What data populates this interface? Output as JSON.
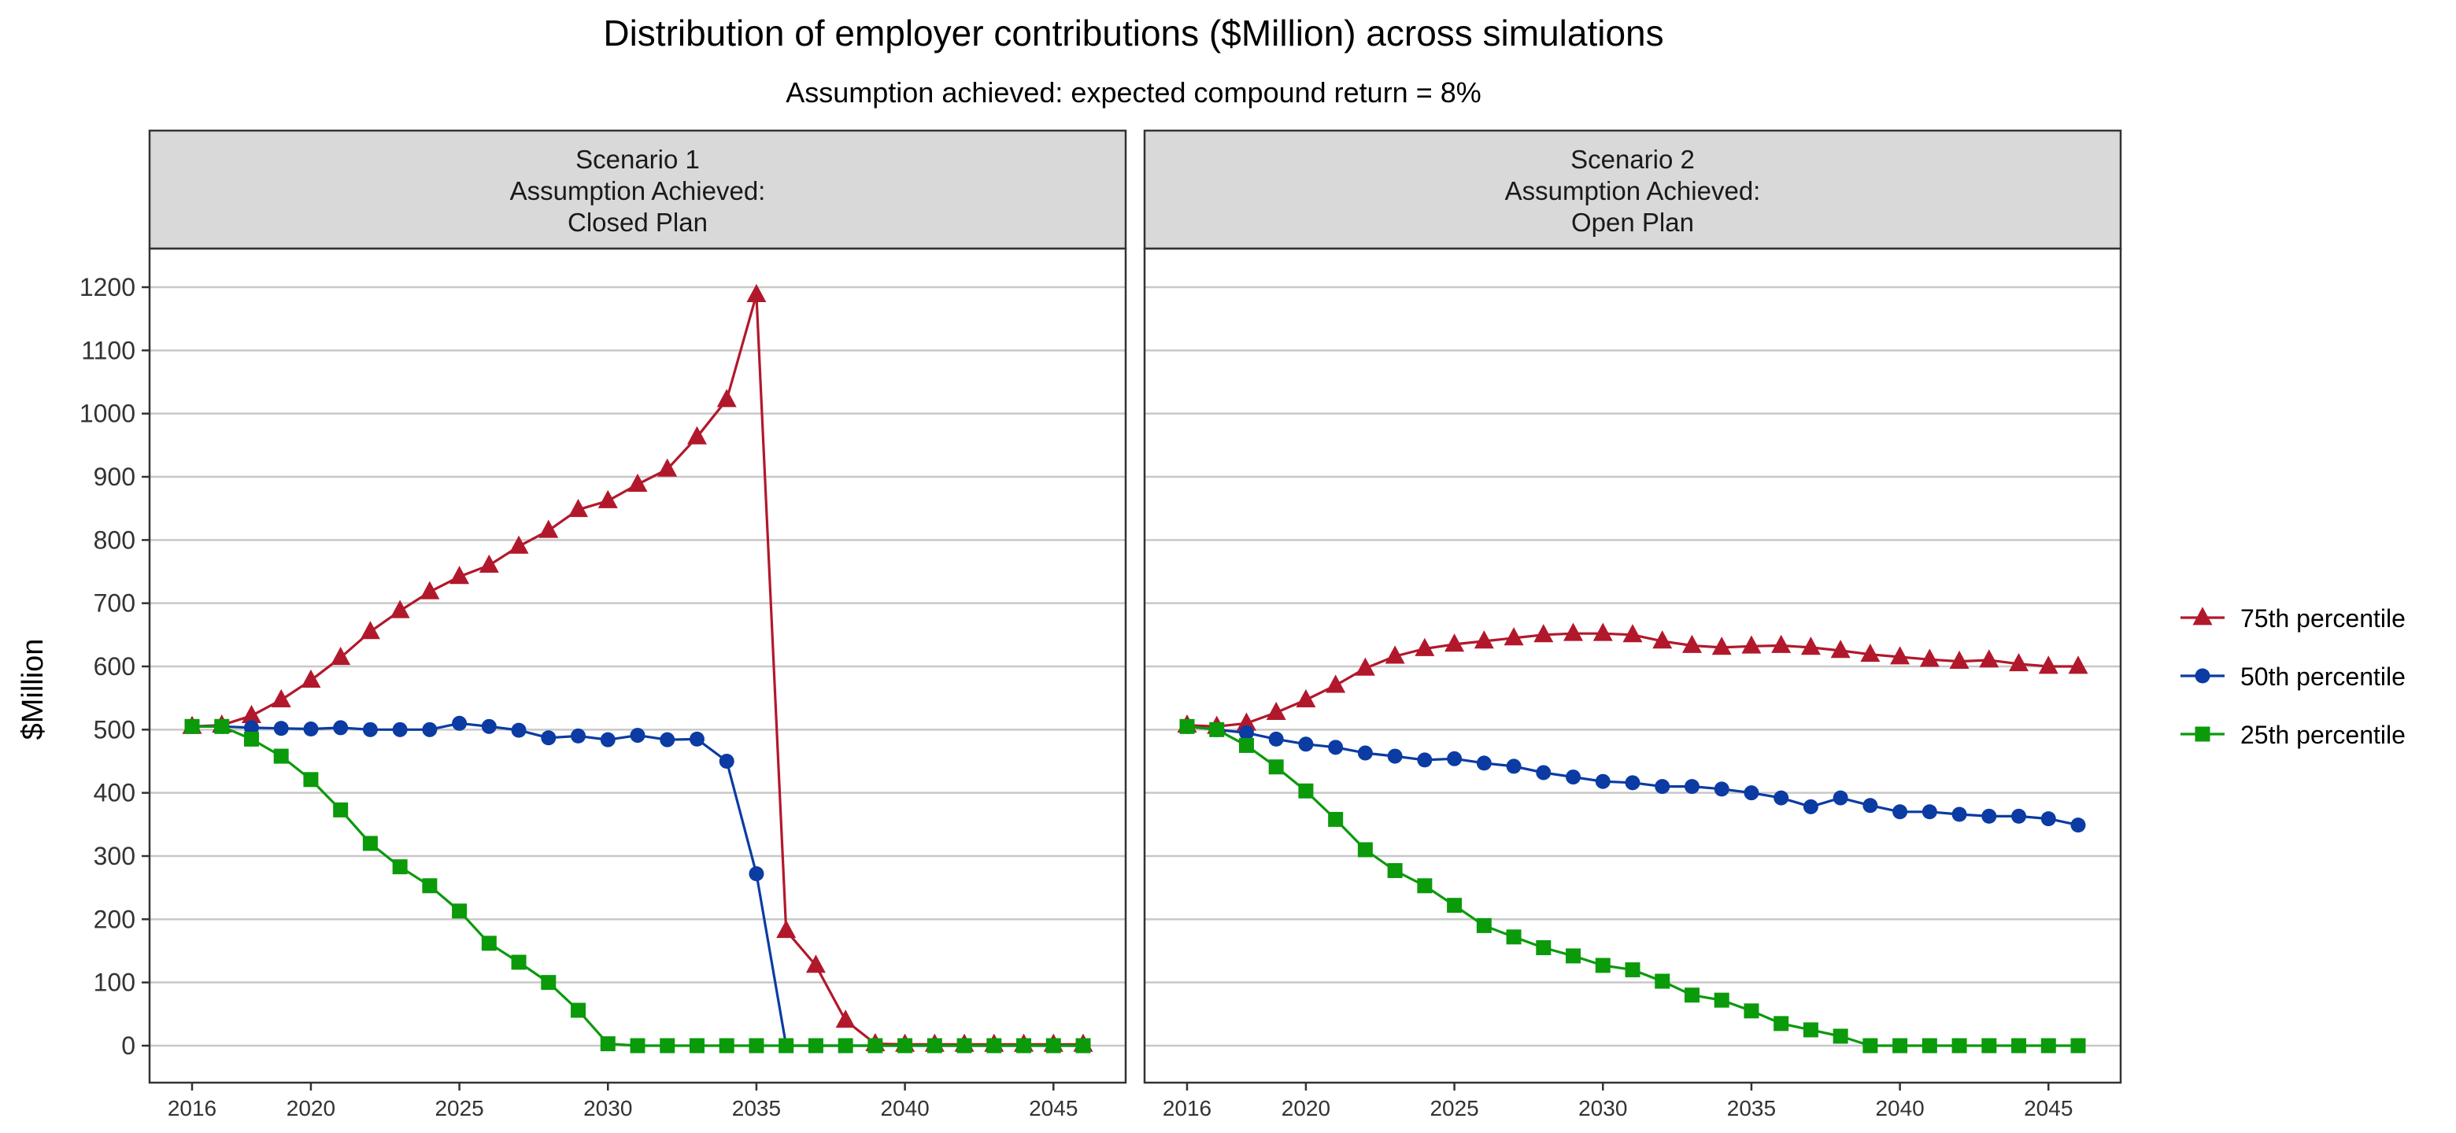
{
  "chart_data": {
    "type": "line",
    "title": "Distribution of employer contributions ($Million) across simulations",
    "subtitle": "Assumption achieved: expected compound return = 8%",
    "xlabel": "",
    "ylabel": "$Million",
    "xlim": [
      2016,
      2046
    ],
    "ylim": [
      0,
      1200
    ],
    "x_ticks": [
      2016,
      2020,
      2025,
      2030,
      2035,
      2040,
      2045
    ],
    "y_ticks": [
      0,
      100,
      200,
      300,
      400,
      500,
      600,
      700,
      800,
      900,
      1000,
      1100,
      1200
    ],
    "grid": "horizontal major lines",
    "legend_position": "right",
    "legend": [
      {
        "name": "75th percentile",
        "color": "#b2182b",
        "marker": "triangle"
      },
      {
        "name": "50th percentile",
        "color": "#0b3ba3",
        "marker": "circle"
      },
      {
        "name": "25th percentile",
        "color": "#0a9a0a",
        "marker": "square"
      }
    ],
    "x": [
      2016,
      2017,
      2018,
      2019,
      2020,
      2021,
      2022,
      2023,
      2024,
      2025,
      2026,
      2027,
      2028,
      2029,
      2030,
      2031,
      2032,
      2033,
      2034,
      2035,
      2036,
      2037,
      2038,
      2039,
      2040,
      2041,
      2042,
      2043,
      2044,
      2045,
      2046
    ],
    "panels": [
      {
        "strip": [
          "Scenario 1",
          "Assumption Achieved:",
          "Closed Plan"
        ],
        "series": [
          {
            "name": "75th percentile",
            "values": [
              505,
              507,
              522,
              547,
              578,
              614,
              655,
              688,
              718,
              742,
              760,
              790,
              815,
              848,
              862,
              888,
              912,
              963,
              1022,
              1188,
              182,
              127,
              40,
              3,
              2,
              2,
              2,
              2,
              2,
              2,
              2
            ]
          },
          {
            "name": "50th percentile",
            "values": [
              505,
              505,
              503,
              502,
              501,
              503,
              500,
              500,
              500,
              510,
              505,
              499,
              487,
              490,
              484,
              491,
              484,
              485,
              450,
              272,
              0,
              0,
              0,
              0,
              0,
              0,
              0,
              0,
              0,
              0,
              0
            ]
          },
          {
            "name": "25th percentile",
            "values": [
              505,
              505,
              485,
              458,
              421,
              373,
              320,
              283,
              253,
              213,
              162,
              132,
              100,
              56,
              3,
              0,
              0,
              0,
              0,
              0,
              0,
              0,
              0,
              0,
              0,
              0,
              0,
              0,
              0,
              0,
              0
            ]
          }
        ]
      },
      {
        "strip": [
          "Scenario 2",
          "Assumption Achieved:",
          "Open Plan"
        ],
        "series": [
          {
            "name": "75th percentile",
            "values": [
              507,
              505,
              510,
              527,
              547,
              570,
              597,
              616,
              628,
              635,
              640,
              645,
              650,
              652,
              652,
              650,
              640,
              633,
              630,
              632,
              633,
              630,
              625,
              619,
              615,
              611,
              608,
              610,
              604,
              600,
              600
            ]
          },
          {
            "name": "50th percentile",
            "values": [
              505,
              500,
              495,
              485,
              477,
              472,
              463,
              458,
              452,
              454,
              447,
              442,
              432,
              425,
              418,
              416,
              410,
              410,
              406,
              400,
              392,
              378,
              392,
              380,
              370,
              370,
              366,
              363,
              363,
              359,
              349
            ]
          },
          {
            "name": "25th percentile",
            "values": [
              505,
              500,
              475,
              441,
              403,
              358,
              310,
              277,
              253,
              222,
              190,
              172,
              155,
              142,
              127,
              120,
              102,
              80,
              72,
              55,
              35,
              25,
              15,
              0,
              0,
              0,
              0,
              0,
              0,
              0,
              0
            ]
          }
        ]
      }
    ]
  }
}
